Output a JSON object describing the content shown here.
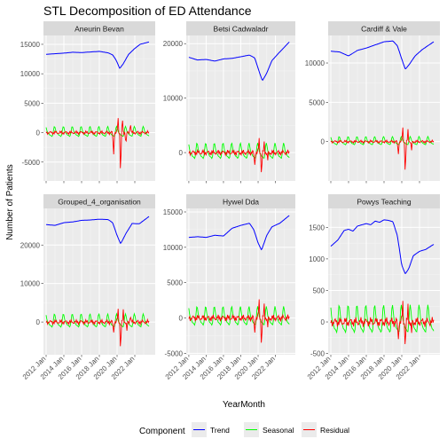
{
  "chart_data": {
    "type": "line",
    "title": "STL Decomposition of ED Attendance",
    "xlabel": "YearMonth",
    "ylabel": "Number of Patients",
    "x_range": [
      2011.7,
      2024.3
    ],
    "x_ticks": [
      {
        "value": 2012,
        "label": "2012 Jan"
      },
      {
        "value": 2014,
        "label": "2014 Jan"
      },
      {
        "value": 2016,
        "label": "2016 Jan"
      },
      {
        "value": 2018,
        "label": "2018 Jan"
      },
      {
        "value": 2020,
        "label": "2020 Jan"
      },
      {
        "value": 2022,
        "label": "2022 Jan"
      }
    ],
    "legend": {
      "title": "Component",
      "position": "bottom",
      "items": [
        {
          "name": "Trend",
          "color": "#0000ff"
        },
        {
          "name": "Seasonal",
          "color": "#00ff00"
        },
        {
          "name": "Residual",
          "color": "#ff0000"
        }
      ]
    },
    "panels": [
      {
        "name": "Aneurin Bevan",
        "ylim": [
          -8200,
          16500
        ],
        "y_ticks": [
          -5000,
          0,
          5000,
          10000,
          15000
        ],
        "trend": [
          [
            2012,
            13300
          ],
          [
            2013,
            13400
          ],
          [
            2014,
            13500
          ],
          [
            2015,
            13650
          ],
          [
            2016,
            13600
          ],
          [
            2017,
            13700
          ],
          [
            2018,
            13800
          ],
          [
            2019,
            13550
          ],
          [
            2019.5,
            13200
          ],
          [
            2019.9,
            12300
          ],
          [
            2020.3,
            10900
          ],
          [
            2020.7,
            11700
          ],
          [
            2021.3,
            13300
          ],
          [
            2022,
            14300
          ],
          [
            2022.6,
            15000
          ],
          [
            2023.6,
            15400
          ]
        ],
        "seasonal_amp": 900,
        "residual_spikes": [
          [
            2019.6,
            -4200
          ],
          [
            2020.1,
            2600
          ],
          [
            2020.4,
            -7800
          ],
          [
            2020.6,
            2200
          ],
          [
            2021.0,
            -2100
          ],
          [
            2021.5,
            1800
          ]
        ]
      },
      {
        "name": "Betsi Cadwaladr",
        "ylim": [
          -5200,
          21500
        ],
        "y_ticks": [
          0,
          10000,
          20000
        ],
        "trend": [
          [
            2012,
            17500
          ],
          [
            2013,
            17000
          ],
          [
            2014,
            17100
          ],
          [
            2015,
            16800
          ],
          [
            2016,
            17200
          ],
          [
            2017,
            17300
          ],
          [
            2018,
            17600
          ],
          [
            2019,
            17900
          ],
          [
            2019.6,
            17400
          ],
          [
            2020.2,
            14500
          ],
          [
            2020.5,
            13200
          ],
          [
            2021,
            14600
          ],
          [
            2021.6,
            16900
          ],
          [
            2022.4,
            18300
          ],
          [
            2023.6,
            20300
          ]
        ],
        "seasonal_amp": 1500,
        "residual_spikes": [
          [
            2019.6,
            -2500
          ],
          [
            2020.1,
            2700
          ],
          [
            2020.4,
            -4500
          ],
          [
            2020.7,
            1800
          ],
          [
            2021.1,
            -1600
          ]
        ]
      },
      {
        "name": "Cardiff & Vale",
        "ylim": [
          -5000,
          13500
        ],
        "y_ticks": [
          0,
          5000,
          10000
        ],
        "trend": [
          [
            2012,
            11500
          ],
          [
            2013,
            11400
          ],
          [
            2014,
            10900
          ],
          [
            2015,
            11600
          ],
          [
            2016,
            11900
          ],
          [
            2017,
            12300
          ],
          [
            2018,
            12700
          ],
          [
            2019,
            12800
          ],
          [
            2019.5,
            12200
          ],
          [
            2020,
            10500
          ],
          [
            2020.4,
            9200
          ],
          [
            2020.9,
            9900
          ],
          [
            2021.5,
            10900
          ],
          [
            2022.3,
            11700
          ],
          [
            2023.6,
            12700
          ]
        ],
        "seasonal_amp": 550,
        "residual_spikes": [
          [
            2019.6,
            -1800
          ],
          [
            2020.1,
            1900
          ],
          [
            2020.4,
            -4600
          ],
          [
            2020.7,
            1500
          ],
          [
            2021.1,
            -1200
          ]
        ]
      },
      {
        "name": "Grouped_4_organisation",
        "ylim": [
          -8500,
          29500
        ],
        "y_ticks": [
          0,
          10000,
          20000
        ],
        "trend": [
          [
            2012,
            25300
          ],
          [
            2013,
            25100
          ],
          [
            2014,
            25800
          ],
          [
            2015,
            26000
          ],
          [
            2016,
            26400
          ],
          [
            2017,
            26500
          ],
          [
            2018,
            26700
          ],
          [
            2019,
            26600
          ],
          [
            2019.5,
            25800
          ],
          [
            2020,
            22500
          ],
          [
            2020.4,
            20300
          ],
          [
            2021,
            23000
          ],
          [
            2021.7,
            25600
          ],
          [
            2022.5,
            25500
          ],
          [
            2023.6,
            27400
          ]
        ],
        "seasonal_amp": 1800,
        "residual_spikes": [
          [
            2019.6,
            -3000
          ],
          [
            2020.1,
            3500
          ],
          [
            2020.4,
            -8000
          ],
          [
            2020.7,
            3000
          ],
          [
            2021.1,
            -2500
          ],
          [
            2021.5,
            2000
          ]
        ]
      },
      {
        "name": "Hywel Dda",
        "ylim": [
          -5200,
          15500
        ],
        "y_ticks": [
          -5000,
          0,
          5000,
          10000,
          15000
        ],
        "trend": [
          [
            2012,
            11400
          ],
          [
            2013,
            11500
          ],
          [
            2014,
            11400
          ],
          [
            2015,
            11700
          ],
          [
            2016,
            11600
          ],
          [
            2017,
            12700
          ],
          [
            2018,
            13100
          ],
          [
            2019,
            13400
          ],
          [
            2019.5,
            12500
          ],
          [
            2020,
            10600
          ],
          [
            2020.4,
            9600
          ],
          [
            2021,
            11700
          ],
          [
            2021.6,
            12900
          ],
          [
            2022.5,
            13400
          ],
          [
            2023.6,
            14500
          ]
        ],
        "seasonal_amp": 1400,
        "residual_spikes": [
          [
            2019.6,
            -2300
          ],
          [
            2020.1,
            2700
          ],
          [
            2020.4,
            -4400
          ],
          [
            2020.7,
            1800
          ],
          [
            2021.1,
            -1500
          ]
        ]
      },
      {
        "name": "Powys Teaching",
        "ylim": [
          -520,
          1800
        ],
        "y_ticks": [
          -500,
          0,
          500,
          1000,
          1500
        ],
        "trend": [
          [
            2012,
            1200
          ],
          [
            2012.8,
            1300
          ],
          [
            2013.5,
            1450
          ],
          [
            2014,
            1470
          ],
          [
            2014.5,
            1440
          ],
          [
            2015,
            1520
          ],
          [
            2016,
            1560
          ],
          [
            2016.5,
            1540
          ],
          [
            2017,
            1600
          ],
          [
            2017.5,
            1580
          ],
          [
            2018,
            1620
          ],
          [
            2018.5,
            1610
          ],
          [
            2019,
            1590
          ],
          [
            2019.5,
            1370
          ],
          [
            2020,
            900
          ],
          [
            2020.4,
            760
          ],
          [
            2020.8,
            850
          ],
          [
            2021.3,
            1050
          ],
          [
            2022,
            1120
          ],
          [
            2022.7,
            1150
          ],
          [
            2023.6,
            1230
          ]
        ],
        "seasonal_amp": 230,
        "residual_spikes": [
          [
            2019.6,
            -300
          ],
          [
            2020.1,
            330
          ],
          [
            2020.4,
            -430
          ],
          [
            2020.7,
            250
          ],
          [
            2021.1,
            -200
          ]
        ]
      }
    ]
  }
}
